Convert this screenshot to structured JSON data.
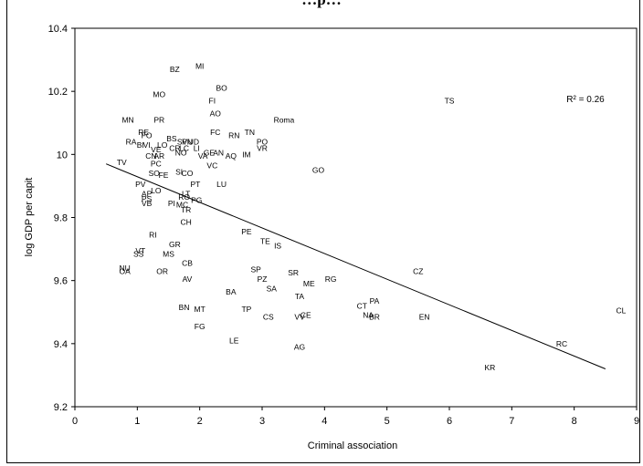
{
  "chart_data": {
    "type": "scatter",
    "title": "…p…",
    "xlabel": "Criminal association",
    "ylabel": "log GDP per capit",
    "xlim": [
      0,
      9
    ],
    "ylim": [
      9.2,
      10.4
    ],
    "xticks": [
      "0",
      "1",
      "2",
      "3",
      "4",
      "5",
      "6",
      "7",
      "8",
      "9"
    ],
    "yticks": [
      "9.2",
      "9.4",
      "9.6",
      "9.8",
      "10",
      "10.2",
      "10.4"
    ],
    "grid": false,
    "annotation": "R² = 0.26",
    "trendline": {
      "x": [
        0.5,
        8.5
      ],
      "y": [
        9.97,
        9.32
      ]
    },
    "points": [
      {
        "label": "MI",
        "x": 2.0,
        "y": 10.28
      },
      {
        "label": "BZ",
        "x": 1.6,
        "y": 10.27
      },
      {
        "label": "BO",
        "x": 2.35,
        "y": 10.21
      },
      {
        "label": "MO",
        "x": 1.35,
        "y": 10.19
      },
      {
        "label": "FI",
        "x": 2.2,
        "y": 10.17
      },
      {
        "label": "TS",
        "x": 6.0,
        "y": 10.17
      },
      {
        "label": "AO",
        "x": 2.25,
        "y": 10.13
      },
      {
        "label": "MN",
        "x": 0.85,
        "y": 10.11
      },
      {
        "label": "PR",
        "x": 1.35,
        "y": 10.11
      },
      {
        "label": "Roma",
        "x": 3.35,
        "y": 10.11
      },
      {
        "label": "FC",
        "x": 2.25,
        "y": 10.07
      },
      {
        "label": "TN",
        "x": 2.8,
        "y": 10.07
      },
      {
        "label": "RE",
        "x": 1.1,
        "y": 10.07
      },
      {
        "label": "FO",
        "x": 1.15,
        "y": 10.06
      },
      {
        "label": "RN",
        "x": 2.55,
        "y": 10.06
      },
      {
        "label": "RA",
        "x": 0.9,
        "y": 10.04
      },
      {
        "label": "BS",
        "x": 1.55,
        "y": 10.05
      },
      {
        "label": "SV",
        "x": 1.72,
        "y": 10.04
      },
      {
        "label": "PN",
        "x": 1.8,
        "y": 10.04
      },
      {
        "label": "UD",
        "x": 1.9,
        "y": 10.04
      },
      {
        "label": "PO",
        "x": 3.0,
        "y": 10.04
      },
      {
        "label": "BI",
        "x": 1.05,
        "y": 10.03
      },
      {
        "label": "VI",
        "x": 1.15,
        "y": 10.03
      },
      {
        "label": "LO",
        "x": 1.4,
        "y": 10.03
      },
      {
        "label": "CR",
        "x": 1.6,
        "y": 10.02
      },
      {
        "label": "LC",
        "x": 1.75,
        "y": 10.02
      },
      {
        "label": "LI",
        "x": 1.95,
        "y": 10.02
      },
      {
        "label": "VR",
        "x": 3.0,
        "y": 10.02
      },
      {
        "label": "VE",
        "x": 1.3,
        "y": 10.015
      },
      {
        "label": "NO",
        "x": 1.7,
        "y": 10.005
      },
      {
        "label": "GE",
        "x": 2.15,
        "y": 10.005
      },
      {
        "label": "AN",
        "x": 2.3,
        "y": 10.005
      },
      {
        "label": "IM",
        "x": 2.75,
        "y": 10.0
      },
      {
        "label": "CN",
        "x": 1.22,
        "y": 9.995
      },
      {
        "label": "AR",
        "x": 1.35,
        "y": 9.995
      },
      {
        "label": "VA",
        "x": 2.05,
        "y": 9.995
      },
      {
        "label": "AQ",
        "x": 2.5,
        "y": 9.995
      },
      {
        "label": "TV",
        "x": 0.75,
        "y": 9.975
      },
      {
        "label": "PC",
        "x": 1.3,
        "y": 9.97
      },
      {
        "label": "VC",
        "x": 2.2,
        "y": 9.965
      },
      {
        "label": "GO",
        "x": 3.9,
        "y": 9.95
      },
      {
        "label": "SI",
        "x": 1.67,
        "y": 9.945
      },
      {
        "label": "SO",
        "x": 1.27,
        "y": 9.94
      },
      {
        "label": "CO",
        "x": 1.8,
        "y": 9.94
      },
      {
        "label": "FE",
        "x": 1.42,
        "y": 9.935
      },
      {
        "label": "PV",
        "x": 1.05,
        "y": 9.905
      },
      {
        "label": "PT",
        "x": 1.93,
        "y": 9.905
      },
      {
        "label": "LU",
        "x": 2.35,
        "y": 9.905
      },
      {
        "label": "LO",
        "x": 1.3,
        "y": 9.885
      },
      {
        "label": "AP",
        "x": 1.15,
        "y": 9.875
      },
      {
        "label": "LT",
        "x": 1.78,
        "y": 9.875
      },
      {
        "label": "PS",
        "x": 1.15,
        "y": 9.86
      },
      {
        "label": "RO",
        "x": 1.75,
        "y": 9.865
      },
      {
        "label": "PG",
        "x": 1.95,
        "y": 9.855
      },
      {
        "label": "VB",
        "x": 1.15,
        "y": 9.845
      },
      {
        "label": "PI",
        "x": 1.55,
        "y": 9.845
      },
      {
        "label": "MC",
        "x": 1.72,
        "y": 9.84
      },
      {
        "label": "TR",
        "x": 1.78,
        "y": 9.825
      },
      {
        "label": "CH",
        "x": 1.78,
        "y": 9.785
      },
      {
        "label": "PE",
        "x": 2.75,
        "y": 9.755
      },
      {
        "label": "RI",
        "x": 1.25,
        "y": 9.745
      },
      {
        "label": "TE",
        "x": 3.05,
        "y": 9.725
      },
      {
        "label": "IS",
        "x": 3.25,
        "y": 9.71
      },
      {
        "label": "GR",
        "x": 1.6,
        "y": 9.715
      },
      {
        "label": "VT",
        "x": 1.05,
        "y": 9.695
      },
      {
        "label": "SS",
        "x": 1.02,
        "y": 9.685
      },
      {
        "label": "MS",
        "x": 1.5,
        "y": 9.685
      },
      {
        "label": "CB",
        "x": 1.8,
        "y": 9.655
      },
      {
        "label": "NU",
        "x": 0.8,
        "y": 9.64
      },
      {
        "label": "OA",
        "x": 0.8,
        "y": 9.63
      },
      {
        "label": "OR",
        "x": 1.4,
        "y": 9.63
      },
      {
        "label": "SP",
        "x": 2.9,
        "y": 9.635
      },
      {
        "label": "CZ",
        "x": 5.5,
        "y": 9.63
      },
      {
        "label": "SR",
        "x": 3.5,
        "y": 9.625
      },
      {
        "label": "AV",
        "x": 1.8,
        "y": 9.605
      },
      {
        "label": "PZ",
        "x": 3.0,
        "y": 9.605
      },
      {
        "label": "RG",
        "x": 4.1,
        "y": 9.605
      },
      {
        "label": "ME",
        "x": 3.75,
        "y": 9.59
      },
      {
        "label": "SA",
        "x": 3.15,
        "y": 9.575
      },
      {
        "label": "BA",
        "x": 2.5,
        "y": 9.565
      },
      {
        "label": "TA",
        "x": 3.6,
        "y": 9.55
      },
      {
        "label": "PA",
        "x": 4.8,
        "y": 9.535
      },
      {
        "label": "CT",
        "x": 4.6,
        "y": 9.52
      },
      {
        "label": "BN",
        "x": 1.75,
        "y": 9.515
      },
      {
        "label": "MT",
        "x": 2.0,
        "y": 9.51
      },
      {
        "label": "TP",
        "x": 2.75,
        "y": 9.51
      },
      {
        "label": "CL",
        "x": 8.75,
        "y": 9.505
      },
      {
        "label": "CE",
        "x": 3.7,
        "y": 9.49
      },
      {
        "label": "NA",
        "x": 4.7,
        "y": 9.49
      },
      {
        "label": "BR",
        "x": 4.8,
        "y": 9.485
      },
      {
        "label": "EN",
        "x": 5.6,
        "y": 9.485
      },
      {
        "label": "CS",
        "x": 3.1,
        "y": 9.485
      },
      {
        "label": "VV",
        "x": 3.6,
        "y": 9.485
      },
      {
        "label": "FG",
        "x": 2.0,
        "y": 9.455
      },
      {
        "label": "LE",
        "x": 2.55,
        "y": 9.41
      },
      {
        "label": "RC",
        "x": 7.8,
        "y": 9.4
      },
      {
        "label": "AG",
        "x": 3.6,
        "y": 9.39
      },
      {
        "label": "KR",
        "x": 6.65,
        "y": 9.325
      }
    ]
  }
}
